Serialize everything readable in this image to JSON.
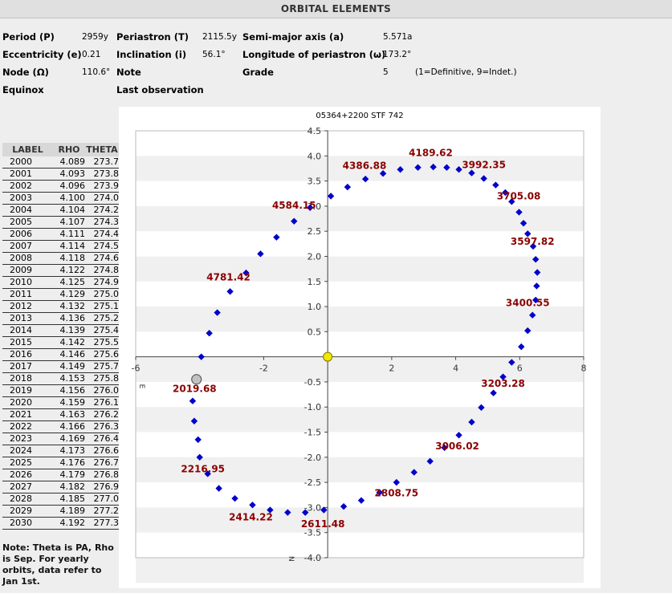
{
  "header": {
    "title": "ORBITAL ELEMENTS"
  },
  "elements": {
    "period_label": "Period (P)",
    "period_value": "2959y",
    "periastron_label": "Periastron (T)",
    "periastron_value": "2115.5y",
    "semimajor_label": "Semi-major axis (a)",
    "semimajor_value": "5.571a",
    "ecc_label": "Eccentricity (e)",
    "ecc_value": "0.21",
    "incl_label": "Inclination (i)",
    "incl_value": "56.1°",
    "long_label": "Longitude of periastron (ω)",
    "long_value": "173.2°",
    "node_label": "Node (Ω)",
    "node_value": "110.6°",
    "note_label": "Note",
    "grade_label": "Grade",
    "grade_value": "5",
    "grade_hint": "(1=Definitive, 9=Indet.)",
    "equinox_label": "Equinox",
    "lastobs_label": "Last observation"
  },
  "yearly_table": {
    "headers": [
      "LABEL",
      "RHO",
      "THETA"
    ],
    "rows": [
      [
        "2000",
        "4.089",
        "273.7"
      ],
      [
        "2001",
        "4.093",
        "273.8"
      ],
      [
        "2002",
        "4.096",
        "273.9"
      ],
      [
        "2003",
        "4.100",
        "274.0"
      ],
      [
        "2004",
        "4.104",
        "274.2"
      ],
      [
        "2005",
        "4.107",
        "274.3"
      ],
      [
        "2006",
        "4.111",
        "274.4"
      ],
      [
        "2007",
        "4.114",
        "274.5"
      ],
      [
        "2008",
        "4.118",
        "274.6"
      ],
      [
        "2009",
        "4.122",
        "274.8"
      ],
      [
        "2010",
        "4.125",
        "274.9"
      ],
      [
        "2011",
        "4.129",
        "275.0"
      ],
      [
        "2012",
        "4.132",
        "275.1"
      ],
      [
        "2013",
        "4.136",
        "275.2"
      ],
      [
        "2014",
        "4.139",
        "275.4"
      ],
      [
        "2015",
        "4.142",
        "275.5"
      ],
      [
        "2016",
        "4.146",
        "275.6"
      ],
      [
        "2017",
        "4.149",
        "275.7"
      ],
      [
        "2018",
        "4.153",
        "275.8"
      ],
      [
        "2019",
        "4.156",
        "276.0"
      ],
      [
        "2020",
        "4.159",
        "276.1"
      ],
      [
        "2021",
        "4.163",
        "276.2"
      ],
      [
        "2022",
        "4.166",
        "276.3"
      ],
      [
        "2023",
        "4.169",
        "276.4"
      ],
      [
        "2024",
        "4.173",
        "276.6"
      ],
      [
        "2025",
        "4.176",
        "276.7"
      ],
      [
        "2026",
        "4.179",
        "276.8"
      ],
      [
        "2027",
        "4.182",
        "276.9"
      ],
      [
        "2028",
        "4.185",
        "277.0"
      ],
      [
        "2029",
        "4.189",
        "277.2"
      ],
      [
        "2030",
        "4.192",
        "277.3"
      ]
    ]
  },
  "note": "Note: Theta is PA, Rho is Sep. For yearly orbits, data refer to Jan 1st.",
  "chart_data": {
    "type": "scatter",
    "title": "05364+2200 STF 742",
    "xlim": [
      -6,
      8
    ],
    "ylim": [
      -4.0,
      4.5
    ],
    "xticks": [
      -6,
      -2,
      2,
      4,
      6,
      8
    ],
    "xtick_labels": [
      "-6",
      "-2",
      "2",
      "4",
      "6",
      "8"
    ],
    "yticks": [
      4.5,
      4.0,
      3.5,
      3.0,
      2.5,
      2.0,
      1.5,
      1.0,
      0.5,
      -0.5,
      -1.0,
      -1.5,
      -2.0,
      -2.5,
      -3.0,
      -3.5,
      -4.0
    ],
    "ytick_labels": [
      "4.5",
      "4.0",
      "3.5",
      "3.0",
      "2.5",
      "2.0",
      "1.5",
      "1.0",
      "0.5",
      "-0.5",
      "-1.0",
      "-1.5",
      "-2.0",
      "-2.5",
      "-3.0",
      "-3.5",
      "-4.0"
    ],
    "compass": {
      "east": "E",
      "north": "N"
    },
    "grid": "alternating horizontal bands",
    "colors": {
      "orbit": "#0000cc",
      "labels": "#8b0000",
      "primary": "#f5e600",
      "current": "#c0c0c0",
      "band": "#f0f0f0"
    },
    "primary_star": {
      "x": 0,
      "y": 0
    },
    "current_position": {
      "x": -4.1,
      "y": -0.45
    },
    "orbit_points": [
      [
        0.1,
        3.2
      ],
      [
        0.62,
        3.38
      ],
      [
        1.18,
        3.54
      ],
      [
        1.73,
        3.65
      ],
      [
        2.27,
        3.73
      ],
      [
        2.82,
        3.77
      ],
      [
        3.3,
        3.78
      ],
      [
        3.72,
        3.77
      ],
      [
        4.1,
        3.73
      ],
      [
        4.5,
        3.66
      ],
      [
        4.88,
        3.55
      ],
      [
        5.25,
        3.42
      ],
      [
        5.55,
        3.27
      ],
      [
        5.75,
        3.09
      ],
      [
        5.98,
        2.88
      ],
      [
        6.12,
        2.66
      ],
      [
        6.25,
        2.45
      ],
      [
        6.42,
        2.2
      ],
      [
        6.5,
        1.94
      ],
      [
        6.55,
        1.68
      ],
      [
        6.53,
        1.41
      ],
      [
        6.5,
        1.13
      ],
      [
        6.4,
        0.83
      ],
      [
        6.25,
        0.52
      ],
      [
        6.05,
        0.2
      ],
      [
        5.75,
        -0.11
      ],
      [
        5.48,
        -0.4
      ],
      [
        5.18,
        -0.72
      ],
      [
        4.8,
        -1.01
      ],
      [
        4.5,
        -1.3
      ],
      [
        4.1,
        -1.56
      ],
      [
        3.65,
        -1.81
      ],
      [
        3.2,
        -2.08
      ],
      [
        2.7,
        -2.3
      ],
      [
        2.15,
        -2.5
      ],
      [
        1.62,
        -2.7
      ],
      [
        1.05,
        -2.86
      ],
      [
        0.5,
        -2.98
      ],
      [
        -0.12,
        -3.05
      ],
      [
        -0.7,
        -3.1
      ],
      [
        -1.25,
        -3.1
      ],
      [
        -1.8,
        -3.05
      ],
      [
        -2.35,
        -2.95
      ],
      [
        -2.9,
        -2.82
      ],
      [
        -3.4,
        -2.62
      ],
      [
        -3.75,
        -2.33
      ],
      [
        -4.0,
        -2.0
      ],
      [
        -4.05,
        -1.65
      ],
      [
        -4.17,
        -1.28
      ],
      [
        -4.22,
        -0.88
      ],
      [
        -3.95,
        0.0
      ],
      [
        -3.7,
        0.47
      ],
      [
        -3.45,
        0.88
      ],
      [
        -3.05,
        1.3
      ],
      [
        -2.55,
        1.67
      ],
      [
        -2.1,
        2.05
      ],
      [
        -1.6,
        2.38
      ],
      [
        -1.05,
        2.7
      ],
      [
        -0.55,
        2.97
      ]
    ],
    "annotations": [
      {
        "text": "4189.62",
        "x": 3.22,
        "y": 4.0
      },
      {
        "text": "3992.35",
        "x": 4.88,
        "y": 3.76
      },
      {
        "text": "4386.88",
        "x": 1.15,
        "y": 3.74
      },
      {
        "text": "3705.08",
        "x": 5.97,
        "y": 3.13
      },
      {
        "text": "4584.15",
        "x": -1.05,
        "y": 2.95
      },
      {
        "text": "3597.82",
        "x": 6.4,
        "y": 2.23
      },
      {
        "text": "4781.42",
        "x": -3.1,
        "y": 1.52
      },
      {
        "text": "3400.55",
        "x": 6.25,
        "y": 1.01
      },
      {
        "text": "2019.68",
        "x": -4.16,
        "y": -0.7
      },
      {
        "text": "3203.28",
        "x": 5.48,
        "y": -0.6
      },
      {
        "text": "3006.02",
        "x": 4.05,
        "y": -1.84
      },
      {
        "text": "2216.95",
        "x": -3.9,
        "y": -2.3
      },
      {
        "text": "2808.75",
        "x": 2.15,
        "y": -2.78
      },
      {
        "text": "2414.22",
        "x": -2.4,
        "y": -3.26
      },
      {
        "text": "2611.48",
        "x": -0.15,
        "y": -3.39
      }
    ]
  }
}
